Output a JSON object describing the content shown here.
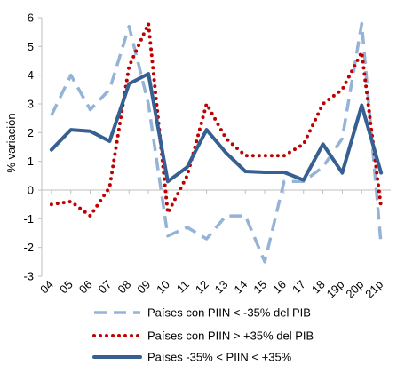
{
  "chart_data": {
    "type": "line",
    "ylabel": "% variación",
    "ylim": [
      -3,
      6
    ],
    "yticks": [
      -3,
      -2,
      -1,
      0,
      1,
      2,
      3,
      4,
      5,
      6
    ],
    "categories": [
      "04",
      "05",
      "06",
      "07",
      "08",
      "09",
      "10",
      "11",
      "12",
      "13",
      "14",
      "15",
      "16",
      "17",
      "18",
      "19p",
      "20p",
      "21p"
    ],
    "legend_placement": "bottom",
    "series": [
      {
        "name": "Países con PIIN < -35% del PIB",
        "color": "#95B3D7",
        "style": "dashed",
        "values": [
          2.6,
          4.0,
          2.8,
          3.5,
          5.7,
          3.0,
          -1.6,
          -1.3,
          -1.7,
          -0.9,
          -0.9,
          -2.5,
          0.3,
          0.3,
          0.8,
          1.8,
          5.8,
          -1.9
        ]
      },
      {
        "name": "Países con PIIN > +35% del PIB",
        "color": "#C00000",
        "style": "dotted",
        "values": [
          -0.5,
          -0.4,
          -0.9,
          0.1,
          4.3,
          5.8,
          -0.8,
          0.5,
          3.0,
          1.8,
          1.2,
          1.2,
          1.2,
          1.6,
          3.0,
          3.5,
          4.8,
          -0.6
        ]
      },
      {
        "name": "Países -35% < PIIN < +35%",
        "color": "#366092",
        "style": "solid",
        "values": [
          1.4,
          2.1,
          2.05,
          1.7,
          3.7,
          4.05,
          0.3,
          0.8,
          2.1,
          1.3,
          0.65,
          0.62,
          0.62,
          0.35,
          1.6,
          0.6,
          2.95,
          0.6
        ]
      }
    ]
  }
}
